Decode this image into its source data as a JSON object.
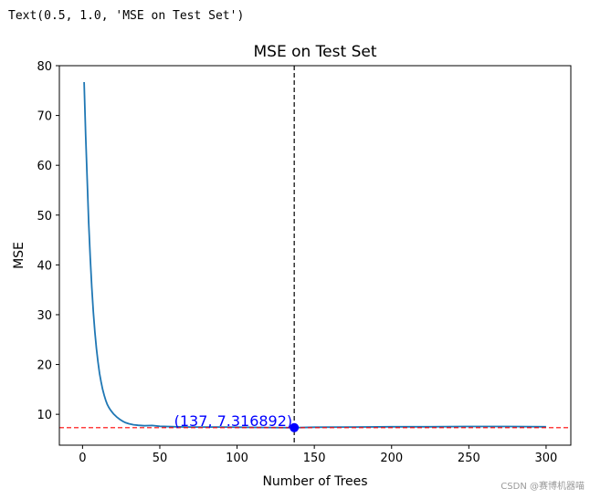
{
  "cell_output": "Text(0.5, 1.0, 'MSE on Test Set')",
  "watermark": "CSDN @赛博机器喵",
  "colors": {
    "line": "#1f77b4",
    "marker": "#0000ff",
    "annotation": "#0000ff",
    "hline": "#ff0000",
    "vline": "#000000"
  },
  "chart_data": {
    "type": "line",
    "title": "MSE on Test Set",
    "xlabel": "Number of Trees",
    "ylabel": "MSE",
    "xlim": [
      -15,
      316
    ],
    "ylim": [
      3.8,
      80
    ],
    "xticks": [
      0,
      50,
      100,
      150,
      200,
      250,
      300
    ],
    "yticks": [
      10,
      20,
      30,
      40,
      50,
      60,
      70,
      80
    ],
    "grid": false,
    "series": [
      {
        "x": [
          1,
          2,
          3,
          4,
          5,
          6,
          7,
          8,
          9,
          10,
          11,
          12,
          13,
          14,
          15,
          16,
          17,
          18,
          19,
          20,
          22,
          24,
          26,
          28,
          30,
          33,
          36,
          40,
          45,
          50,
          60,
          70,
          80,
          90,
          100,
          120,
          137,
          150,
          175,
          200,
          225,
          250,
          275,
          300
        ],
        "y": [
          76.7,
          66.0,
          57.0,
          48.5,
          41.5,
          35.5,
          30.5,
          26.5,
          23.2,
          20.5,
          18.2,
          16.5,
          15.0,
          13.8,
          12.8,
          12.0,
          11.4,
          10.9,
          10.5,
          10.1,
          9.5,
          9.0,
          8.6,
          8.3,
          8.1,
          7.9,
          7.8,
          7.7,
          7.75,
          7.6,
          7.5,
          7.45,
          7.45,
          7.45,
          7.4,
          7.35,
          7.316892,
          7.4,
          7.45,
          7.5,
          7.5,
          7.55,
          7.55,
          7.5
        ]
      }
    ],
    "min_point": {
      "x": 137,
      "y": 7.316892
    },
    "min_label": "(137,  7.316892)",
    "hline_y": 7.316892,
    "vline_x": 137
  }
}
